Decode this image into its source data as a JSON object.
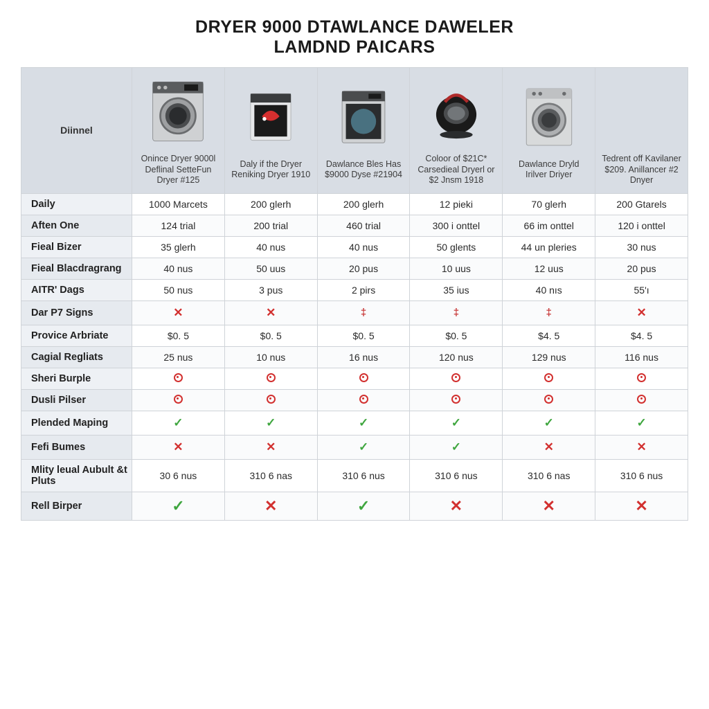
{
  "title": {
    "line1": "DRYER 9000 DTAWLANCE DAWELER",
    "line2": "LAMDND PAICARS",
    "color": "#1a1a1a",
    "fontsize": 25
  },
  "table": {
    "corner_label": "Diinnel",
    "header_bg": "#d8dde4",
    "row_label_bg": "#eef1f5",
    "row_label_bg_alt": "#e6eaef",
    "border_color": "#cfd3d8",
    "columns": [
      {
        "name": "Onince Dryer 9000l Deflinal SetteFun Dryer #125",
        "image": "washer-silver"
      },
      {
        "name": "Daly if the Dryer Reniking Dryer 1910",
        "image": "oven-red"
      },
      {
        "name": "Dawlance Bles Has $9000 Dyse #21904",
        "image": "oven-dark"
      },
      {
        "name": "Coloor of $21C* Carsedieal Dryerl or $2 Jnsm 1918",
        "image": "sphere-dark"
      },
      {
        "name": "Dawlance Dryld Irilver Driyer",
        "image": "washer-plain"
      },
      {
        "name": "Tedrent off Kavilaner $209. Anillancer #2 Dnyer",
        "image": "none"
      }
    ],
    "rows": [
      {
        "label": "Daily",
        "cells": [
          "1000 Marcets",
          "200 glerh",
          "200 glerh",
          "12 pieki",
          "70 glerh",
          "200 Gtarels"
        ]
      },
      {
        "label": "Aften One",
        "cells": [
          "124 trial",
          "200 trial",
          "460 trial",
          "300 i onttel",
          "66 im onttel",
          "120 i onttel"
        ]
      },
      {
        "label": "Fieal Bizer",
        "cells": [
          "35 glerh",
          "40 nus",
          "40 nus",
          "50 glents",
          "44 un pleries",
          "30 nus"
        ]
      },
      {
        "label": "Fieal Blacdragrang",
        "cells": [
          "40 nus",
          "50 uus",
          "20 pus",
          "10 uus",
          "12 uus",
          "20 pus"
        ]
      },
      {
        "label": "AITR' Dags",
        "cells": [
          "50 nus",
          "3 pus",
          "2 pirs",
          "35 ius",
          "40 nıs",
          "55'ı"
        ]
      },
      {
        "label": "Dar P7 Signs",
        "cells": [
          "x",
          "x",
          "dagger",
          "dagger",
          "dagger",
          "x"
        ]
      },
      {
        "label": "Provice Arbriate",
        "cells": [
          "$0. 5",
          "$0. 5",
          "$0. 5",
          "$0. 5",
          "$4. 5",
          "$4. 5"
        ]
      },
      {
        "label": "Cagial Regliats",
        "cells": [
          "25 nus",
          "10 nus",
          "16 nus",
          "120 nus",
          "129 nus",
          "116 nus"
        ]
      },
      {
        "label": "Sheri Burple",
        "cells": [
          "o",
          "o",
          "o",
          "o",
          "o",
          "o"
        ]
      },
      {
        "label": "Dusli Pilser",
        "cells": [
          "o",
          "o",
          "o",
          "o",
          "o",
          "o"
        ]
      },
      {
        "label": "Plended Maping",
        "cells": [
          "check",
          "check",
          "check",
          "check",
          "check",
          "check"
        ]
      },
      {
        "label": "Fefi Bumes",
        "cells": [
          "x",
          "x",
          "check",
          "check",
          "x",
          "x"
        ]
      },
      {
        "label": "Mlity leual Aubult &t Pluts",
        "cells": [
          "30 6 nus",
          "310 6 nas",
          "310 6 nus",
          "310 6 nus",
          "310 6 nas",
          "310 6 nus"
        ]
      },
      {
        "label": "Rell Birper",
        "cells": [
          "check-big",
          "x-big",
          "check-big",
          "x-big",
          "x-big",
          "x-big"
        ]
      }
    ],
    "mark_colors": {
      "x": "#d2302f",
      "check": "#3fa63f",
      "dagger": "#c83a3a",
      "circle": "#d2302f"
    },
    "col_width_first": 160
  }
}
